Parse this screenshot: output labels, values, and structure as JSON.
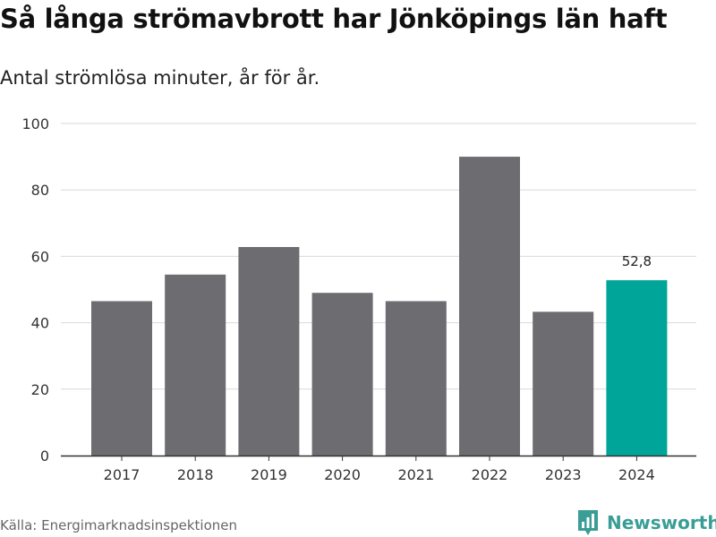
{
  "title": "Så långa strömavbrott har Jönköpings län haft",
  "subtitle": "Antal strömlösa minuter, år för år.",
  "source": "Källa: Energimarknadsinspektionen",
  "brand": {
    "name": "Newsworthy",
    "icon": "newsworthy-logo-icon",
    "color": "#3a9e96"
  },
  "chart_data": {
    "type": "bar",
    "title": "Så långa strömavbrott har Jönköpings län haft",
    "subtitle": "Antal strömlösa minuter, år för år.",
    "categories": [
      "2017",
      "2018",
      "2019",
      "2020",
      "2021",
      "2022",
      "2023",
      "2024"
    ],
    "values": [
      46.5,
      54.5,
      62.8,
      49,
      46.5,
      90,
      43.3,
      52.8
    ],
    "ylim": [
      0,
      100
    ],
    "yticks": [
      "0",
      "20",
      "40",
      "60",
      "80",
      "100"
    ],
    "ytick_values": [
      0,
      20,
      40,
      60,
      80,
      100
    ],
    "xlabel": "",
    "ylabel": "",
    "grid": true,
    "highlight_index": 7,
    "data_labels": [
      {
        "index": 7,
        "text": "52,8"
      }
    ],
    "colors": {
      "bar": "#6d6c70",
      "highlight": "#00a599",
      "grid": "#d9d9d9",
      "axis": "#333333"
    }
  }
}
